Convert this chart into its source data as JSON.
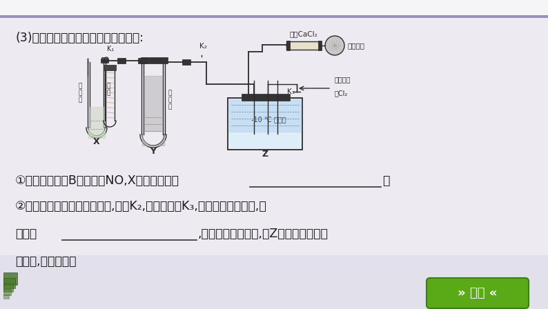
{
  "bg_color": "#edeaf2",
  "top_bar_color": "#f8f8fc",
  "purple_line_color": "#9b8fc0",
  "text_color": "#1a1a1a",
  "gc": "#2a2a2a",
  "title": "(3)实验室可用图示装置制备亚硝酰氯:",
  "q1a": "①实验室也可用B装置制备NO,X装置的优点为",
  "q1end": "。",
  "q2": "②检验装置气密性并装入药品,打开K₂,然后再打开K₃,通入一段时间气体,其",
  "q3a": "目的是",
  "q3b": ",然后进行其他操作,当Z中有一定量液体",
  "q4": "生成时,停止实验。",
  "answer_text": "» 答案 «",
  "answer_color": "#5aaa18",
  "answer_text_color": "#ffffff"
}
